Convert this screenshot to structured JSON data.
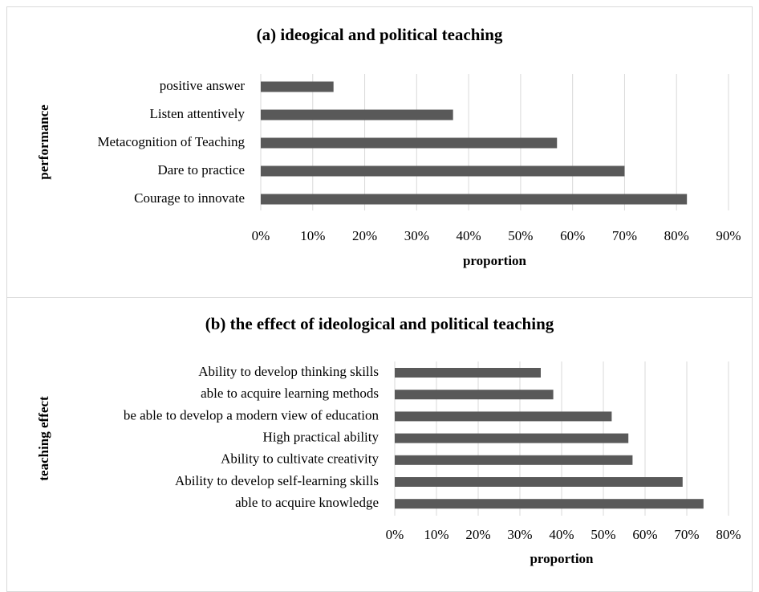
{
  "chart_data": [
    {
      "type": "bar",
      "orientation": "horizontal",
      "title": "(a) ideogical and political teaching",
      "xlabel": "proportion",
      "ylabel": "performance",
      "categories": [
        "positive answer",
        "Listen attentively",
        "Metacognition of Teaching",
        "Dare to practice",
        "Courage to innovate"
      ],
      "values": [
        14,
        37,
        57,
        70,
        82
      ],
      "color": "#595959",
      "grid": true,
      "xlim": [
        0,
        90
      ],
      "xticks": [
        {
          "value": 0,
          "label": "0%"
        },
        {
          "value": 10,
          "label": "10%"
        },
        {
          "value": 20,
          "label": "20%"
        },
        {
          "value": 30,
          "label": "30%"
        },
        {
          "value": 40,
          "label": "40%"
        },
        {
          "value": 50,
          "label": "50%"
        },
        {
          "value": 60,
          "label": "60%"
        },
        {
          "value": 70,
          "label": "70%"
        },
        {
          "value": 80,
          "label": "80%"
        },
        {
          "value": 90,
          "label": "90%"
        }
      ]
    },
    {
      "type": "bar",
      "orientation": "horizontal",
      "title": "(b) the effect of ideological and political teaching",
      "xlabel": "proportion",
      "ylabel": "teaching effect",
      "categories": [
        "Ability to develop thinking skills",
        "able to acquire learning methods",
        "be able to develop a modern view of education",
        "High practical ability",
        "Ability to cultivate creativity",
        "Ability to develop self-learning skills",
        "able to acquire knowledge"
      ],
      "values": [
        35,
        38,
        52,
        56,
        57,
        69,
        74
      ],
      "color": "#595959",
      "grid": true,
      "xlim": [
        0,
        80
      ],
      "xticks": [
        {
          "value": 0,
          "label": "0%"
        },
        {
          "value": 10,
          "label": "10%"
        },
        {
          "value": 20,
          "label": "20%"
        },
        {
          "value": 30,
          "label": "30%"
        },
        {
          "value": 40,
          "label": "40%"
        },
        {
          "value": 50,
          "label": "50%"
        },
        {
          "value": 60,
          "label": "60%"
        },
        {
          "value": 70,
          "label": "70%"
        },
        {
          "value": 80,
          "label": "80%"
        }
      ]
    }
  ]
}
